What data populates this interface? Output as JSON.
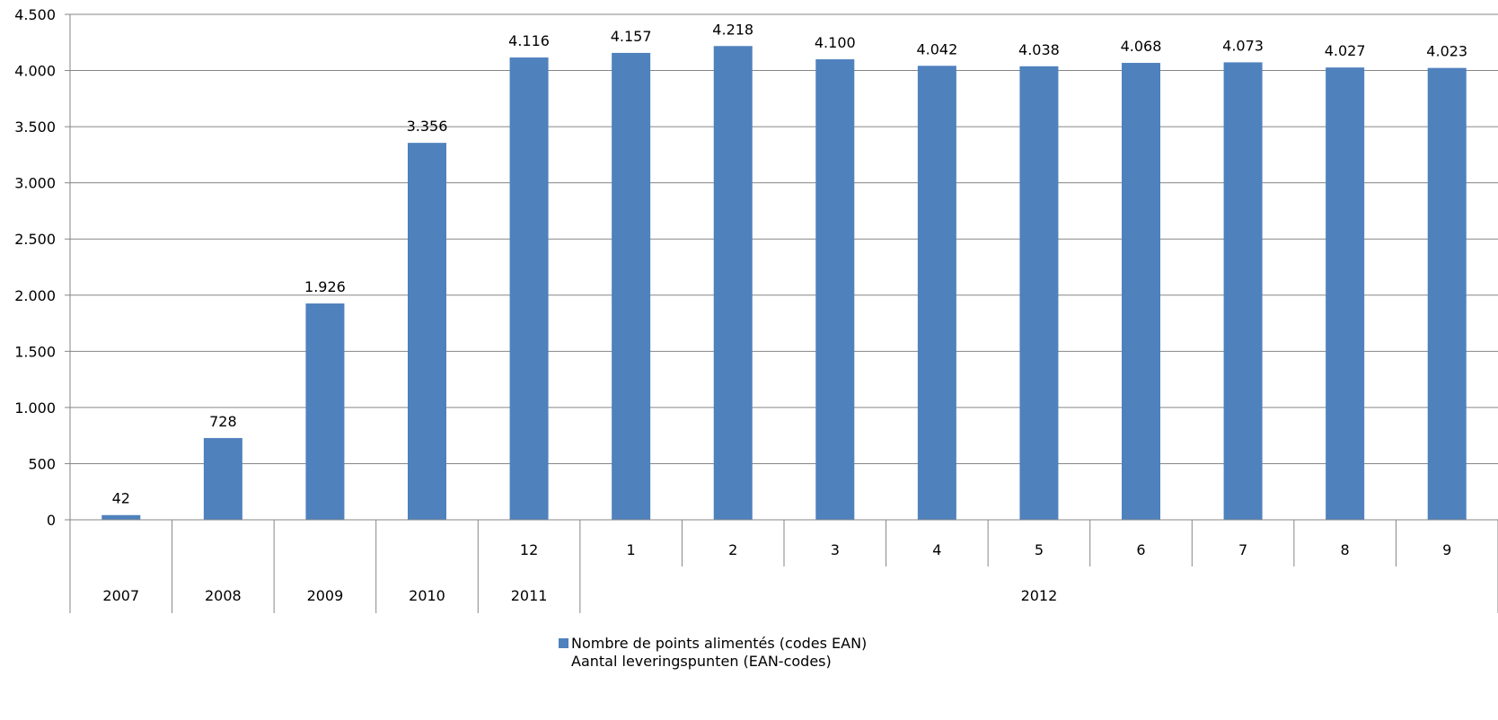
{
  "chart_data": {
    "type": "bar",
    "categories": [
      "2007",
      "2008",
      "2009",
      "2010",
      "12",
      "1",
      "2",
      "3",
      "4",
      "5",
      "6",
      "7",
      "8",
      "9"
    ],
    "year_labels": [
      "2007",
      "2008",
      "2009",
      "2010",
      "2011",
      "2012"
    ],
    "series": [
      {
        "name": "Nombre de points alimentés (codes EAN)\nAantal leveringspunten (EAN-codes)",
        "values": [
          42,
          728,
          1926,
          3356,
          4116,
          4157,
          4218,
          4100,
          4042,
          4038,
          4068,
          4073,
          4027,
          4023
        ],
        "data_labels": [
          "42",
          "728",
          "1.926",
          "3.356",
          "4.116",
          "4.157",
          "4.218",
          "4.100",
          "4.042",
          "4.038",
          "4.068",
          "4.073",
          "4.027",
          "4.023"
        ],
        "color": "#4F81BD"
      }
    ],
    "ylim": [
      0,
      4500
    ],
    "y_ticks": [
      0,
      500,
      1000,
      1500,
      2000,
      2500,
      3000,
      3500,
      4000,
      4500
    ],
    "y_tick_labels": [
      "0",
      "500",
      "1.000",
      "1.500",
      "2.000",
      "2.500",
      "3.000",
      "3.500",
      "4.000",
      "4.500"
    ],
    "grid": true,
    "legend": {
      "placement": "bottom-center",
      "line1": "Nombre de points alimentés (codes EAN)",
      "line2": "Aantal leveringspunten (EAN-codes)"
    },
    "colors": {
      "bar": "#4F81BD",
      "grid": "#868686",
      "axis": "#868686"
    }
  }
}
